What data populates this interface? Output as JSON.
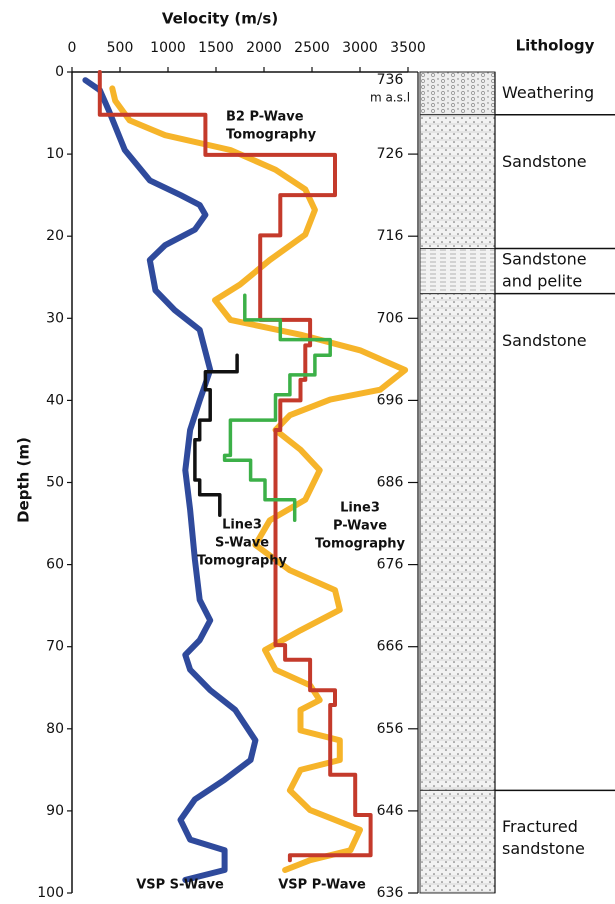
{
  "chart_data": {
    "type": "line",
    "xlabel": "Velocity (m/s)",
    "ylabel": "Depth (m)",
    "xlim": [
      0,
      3500
    ],
    "xticks": [
      0,
      500,
      1000,
      1500,
      2000,
      2500,
      3000,
      3500
    ],
    "ylim": [
      0,
      100
    ],
    "yticks": [
      0,
      10,
      20,
      30,
      40,
      50,
      60,
      70,
      80,
      90,
      100
    ],
    "y2lim": [
      736,
      636
    ],
    "y2ticks": [
      736,
      726,
      716,
      706,
      696,
      686,
      676,
      666,
      656,
      646,
      636
    ],
    "y2label": "m a.s.l",
    "lithology_title": "Lithology",
    "lithology": [
      {
        "name": [
          "Weathering"
        ],
        "top": 0,
        "bottom": 5.2
      },
      {
        "name": [
          "Sandstone"
        ],
        "top": 5.2,
        "bottom": 21.5
      },
      {
        "name": [
          "Sandstone",
          "and pelite"
        ],
        "top": 21.5,
        "bottom": 27
      },
      {
        "name": [
          "Sandstone"
        ],
        "top": 27,
        "bottom": 87.5
      },
      {
        "name": [
          "Fractured",
          "sandstone"
        ],
        "top": 87.5,
        "bottom": 100
      }
    ],
    "series": [
      {
        "name": [
          "VSP S-Wave"
        ],
        "color": "#2f4a9c",
        "depth": [
          1.0,
          2.2,
          4.6,
          9.5,
          13.2,
          15.0,
          16.2,
          17.4,
          19.2,
          21.1,
          22.9,
          26.6,
          29.0,
          31.4,
          36.3,
          40.0,
          43.6,
          48.5,
          53.3,
          59.4,
          64.3,
          66.8,
          69.2,
          71.0,
          72.8,
          75.3,
          77.7,
          81.4,
          83.8,
          86.2,
          88.6,
          91.1,
          93.5,
          94.8,
          97.2,
          98.4
        ],
        "values": [
          140,
          290,
          380,
          550,
          810,
          1130,
          1330,
          1390,
          1280,
          970,
          810,
          870,
          1070,
          1330,
          1440,
          1330,
          1230,
          1180,
          1230,
          1280,
          1330,
          1440,
          1330,
          1180,
          1230,
          1440,
          1700,
          1910,
          1860,
          1590,
          1280,
          1130,
          1230,
          1590,
          1590,
          1180
        ]
      },
      {
        "name": [
          "VSP P-Wave"
        ],
        "color": "#f6b42a",
        "depth": [
          2.0,
          3.5,
          5.9,
          7.7,
          9.5,
          11.9,
          14.3,
          16.8,
          19.8,
          22.9,
          25.9,
          27.8,
          30.2,
          32.0,
          33.9,
          36.3,
          38.7,
          39.9,
          41.8,
          43.6,
          46.0,
          48.5,
          52.1,
          54.6,
          57.6,
          60.7,
          63.1,
          65.5,
          68.0,
          70.4,
          72.8,
          74.7,
          76.5,
          77.7,
          80.2,
          81.4,
          83.8,
          85.0,
          87.5,
          89.9,
          92.3,
          94.8,
          96.0,
          97.2
        ],
        "values": [
          420,
          450,
          600,
          970,
          1650,
          2120,
          2430,
          2530,
          2430,
          2060,
          1750,
          1490,
          1650,
          2380,
          3000,
          3470,
          3210,
          2690,
          2270,
          2120,
          2380,
          2580,
          2430,
          2060,
          1910,
          2270,
          2740,
          2790,
          2380,
          2010,
          2120,
          2480,
          2580,
          2380,
          2380,
          2790,
          2790,
          2380,
          2270,
          2480,
          3000,
          2900,
          2480,
          2220
        ]
      },
      {
        "name": [
          "B2 P-Wave",
          "Tomography"
        ],
        "color": "#c43a2b",
        "depth": [
          0,
          5.2,
          5.2,
          10.1,
          10.1,
          15.0,
          15.0,
          19.9,
          19.9,
          30.2,
          30.2,
          33.3,
          33.3,
          37.5,
          37.5,
          40.0,
          40.0,
          43.6,
          43.6,
          69.8,
          69.8,
          71.6,
          71.6,
          75.3,
          75.3,
          77.1,
          77.1,
          81.4,
          81.4,
          85.6,
          85.6,
          90.5,
          90.5,
          95.4,
          95.4,
          96.0
        ],
        "values": [
          290,
          290,
          1390,
          1390,
          2740,
          2740,
          2170,
          2170,
          1960,
          1960,
          2480,
          2480,
          2430,
          2430,
          2380,
          2380,
          2170,
          2170,
          2120,
          2120,
          2220,
          2220,
          2480,
          2480,
          2740,
          2740,
          2690,
          2690,
          2690,
          2690,
          2950,
          2950,
          3110,
          3110,
          2270,
          2270
        ]
      },
      {
        "name": [
          "Line3",
          "P-Wave",
          "Tomography"
        ],
        "color": "#3cb048",
        "depth": [
          27.2,
          30.2,
          30.2,
          32.6,
          32.6,
          34.5,
          34.5,
          36.9,
          36.9,
          39.3,
          39.3,
          42.4,
          42.4,
          46.7,
          46.7,
          47.3,
          47.3,
          49.7,
          49.7,
          52.1,
          52.1,
          54.6
        ],
        "values": [
          1800,
          1800,
          2170,
          2170,
          2690,
          2690,
          2530,
          2530,
          2270,
          2270,
          2120,
          2120,
          1650,
          1650,
          1590,
          1590,
          1860,
          1860,
          2010,
          2010,
          2320,
          2320
        ]
      },
      {
        "name": [
          "Line3",
          "S-Wave",
          "Tomography"
        ],
        "color": "#111111",
        "depth": [
          34.5,
          36.5,
          36.5,
          38.7,
          38.7,
          42.4,
          42.4,
          44.8,
          44.8,
          49.7,
          49.7,
          51.5,
          51.5,
          54.0
        ],
        "values": [
          1720,
          1720,
          1390,
          1390,
          1440,
          1440,
          1330,
          1330,
          1280,
          1280,
          1330,
          1330,
          1540,
          1540
        ]
      }
    ]
  }
}
